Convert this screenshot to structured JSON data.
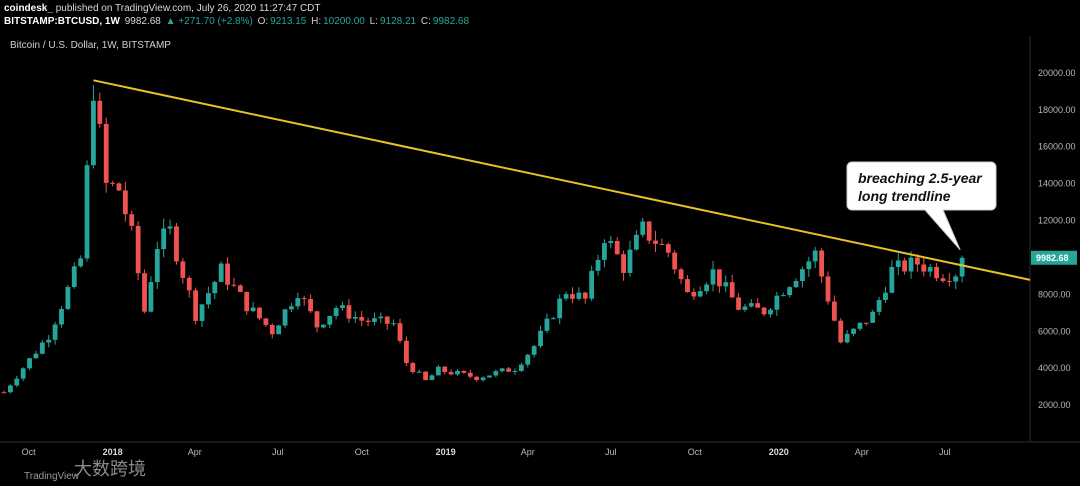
{
  "header": {
    "publisher": "coindesk_",
    "published_text": "published on TradingView.com, July 26, 2020 11:27:47 CDT",
    "symbol": "BITSTAMP:BTCUSD, 1W",
    "price": "9982.68",
    "change": "▲ +271.70 (+2.8%)",
    "o_label": "O:",
    "o_value": "9213.15",
    "h_label": "H:",
    "h_value": "10200.00",
    "l_label": "L:",
    "l_value": "9128.21",
    "c_label": "C:",
    "c_value": "9982.68"
  },
  "chart_data": {
    "type": "candlestick",
    "title": "Bitcoin / U.S. Dollar, 1W, BITSTAMP",
    "y_range": [
      0,
      22000
    ],
    "y_ticks": [
      2000,
      4000,
      6000,
      8000,
      10000,
      12000,
      14000,
      16000,
      18000,
      20000
    ],
    "y_tick_labels": [
      "2000.00",
      "4000.00",
      "6000.00",
      "8000.00",
      "",
      "12000.00",
      "14000.00",
      "16000.00",
      "18000.00",
      "20000.00"
    ],
    "x_range": [
      "2017-09-04",
      "2020-09-28"
    ],
    "x_ticks": [
      {
        "date": "2017-10-01",
        "label": "Oct"
      },
      {
        "date": "2018-01-01",
        "label": "2018",
        "bold": true
      },
      {
        "date": "2018-04-01",
        "label": "Apr"
      },
      {
        "date": "2018-07-01",
        "label": "Jul"
      },
      {
        "date": "2018-10-01",
        "label": "Oct"
      },
      {
        "date": "2019-01-01",
        "label": "2019",
        "bold": true
      },
      {
        "date": "2019-04-01",
        "label": "Apr"
      },
      {
        "date": "2019-07-01",
        "label": "Jul"
      },
      {
        "date": "2019-10-01",
        "label": "Oct"
      },
      {
        "date": "2020-01-01",
        "label": "2020",
        "bold": true
      },
      {
        "date": "2020-04-01",
        "label": "Apr"
      },
      {
        "date": "2020-07-01",
        "label": "Jul"
      }
    ],
    "anchors": [
      {
        "date": "2017-09-04",
        "price": 2700
      },
      {
        "date": "2017-10-23",
        "price": 5800
      },
      {
        "date": "2017-11-27",
        "price": 9900
      },
      {
        "date": "2017-12-11",
        "price": 19300
      },
      {
        "date": "2017-12-25",
        "price": 13900
      },
      {
        "date": "2018-01-08",
        "price": 13700
      },
      {
        "date": "2018-01-22",
        "price": 11200
      },
      {
        "date": "2018-02-05",
        "price": 7100
      },
      {
        "date": "2018-02-19",
        "price": 10700
      },
      {
        "date": "2018-03-05",
        "price": 11400
      },
      {
        "date": "2018-04-02",
        "price": 6900
      },
      {
        "date": "2018-04-30",
        "price": 9300
      },
      {
        "date": "2018-05-28",
        "price": 7400
      },
      {
        "date": "2018-06-25",
        "price": 6000
      },
      {
        "date": "2018-07-23",
        "price": 8200
      },
      {
        "date": "2018-08-13",
        "price": 6300
      },
      {
        "date": "2018-09-03",
        "price": 7300
      },
      {
        "date": "2018-10-01",
        "price": 6600
      },
      {
        "date": "2018-11-05",
        "price": 6400
      },
      {
        "date": "2018-11-19",
        "price": 4300
      },
      {
        "date": "2018-12-10",
        "price": 3300
      },
      {
        "date": "2018-12-24",
        "price": 3900
      },
      {
        "date": "2019-02-04",
        "price": 3500
      },
      {
        "date": "2019-03-18",
        "price": 4000
      },
      {
        "date": "2019-04-08",
        "price": 5200
      },
      {
        "date": "2019-05-13",
        "price": 8200
      },
      {
        "date": "2019-06-03",
        "price": 7700
      },
      {
        "date": "2019-06-24",
        "price": 11200
      },
      {
        "date": "2019-07-15",
        "price": 9500
      },
      {
        "date": "2019-08-05",
        "price": 11500
      },
      {
        "date": "2019-09-02",
        "price": 10300
      },
      {
        "date": "2019-09-23",
        "price": 8000
      },
      {
        "date": "2019-10-21",
        "price": 9200
      },
      {
        "date": "2019-11-18",
        "price": 7300
      },
      {
        "date": "2019-12-16",
        "price": 7100
      },
      {
        "date": "2020-01-13",
        "price": 8700
      },
      {
        "date": "2020-02-10",
        "price": 10200
      },
      {
        "date": "2020-03-09",
        "price": 5400
      },
      {
        "date": "2020-04-13",
        "price": 6900
      },
      {
        "date": "2020-05-04",
        "price": 9300
      },
      {
        "date": "2020-06-01",
        "price": 9700
      },
      {
        "date": "2020-06-29",
        "price": 9100
      },
      {
        "date": "2020-07-13",
        "price": 9200
      },
      {
        "date": "2020-07-20",
        "price": 9982.68
      }
    ],
    "trendline": {
      "from": {
        "date": "2017-12-11",
        "price": 19600
      },
      "through": {
        "date": "2019-06-24",
        "price": 13700
      },
      "color": "#e6c229"
    },
    "last_price": "9982.68",
    "annotation": [
      "breaching 2.5-year",
      "long trendline"
    ],
    "colors": {
      "up": "#26a69a",
      "down": "#ef5350",
      "trendline": "#e6c229",
      "background": "#000000"
    }
  },
  "watermark": {
    "brand": "TradingView",
    "overlay_text": "大数跨境"
  }
}
